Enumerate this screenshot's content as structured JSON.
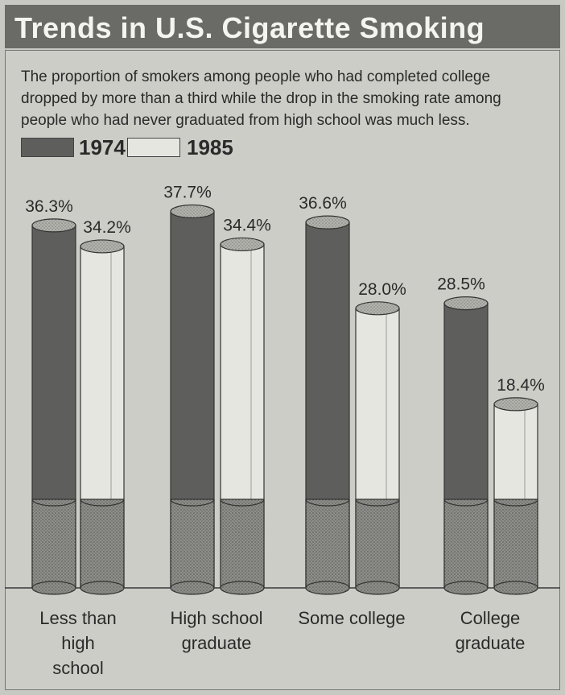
{
  "title": "Trends in U.S. Cigarette Smoking",
  "subtitle": "The proportion of smokers among people who had completed college dropped by more than a third while the drop in the smoking rate among people who had never graduated from high school was much less.",
  "legend": {
    "label_1974": "1974",
    "label_1985": "1985"
  },
  "colors": {
    "series_1974": "#5e5e5c",
    "series_1985": "#e6e6e1",
    "filter": "#8e8e8a",
    "tip": "#b3b3ae"
  },
  "chart_data": {
    "type": "bar",
    "categories": [
      "Less than high school",
      "High school graduate",
      "Some college",
      "College graduate"
    ],
    "category_lines": [
      [
        "Less than",
        "high",
        "school"
      ],
      [
        "High school",
        "graduate"
      ],
      [
        "Some college"
      ],
      [
        "College",
        "graduate"
      ]
    ],
    "series": [
      {
        "name": "1974",
        "values": [
          36.3,
          37.7,
          36.6,
          28.5
        ],
        "labels": [
          "36.3%",
          "37.7%",
          "36.6%",
          "28.5%"
        ]
      },
      {
        "name": "1985",
        "values": [
          34.2,
          34.4,
          28.0,
          18.4
        ],
        "labels": [
          "34.2%",
          "34.4%",
          "28.0%",
          "18.4%"
        ]
      }
    ],
    "legend_position": "top-left",
    "grid": false
  }
}
